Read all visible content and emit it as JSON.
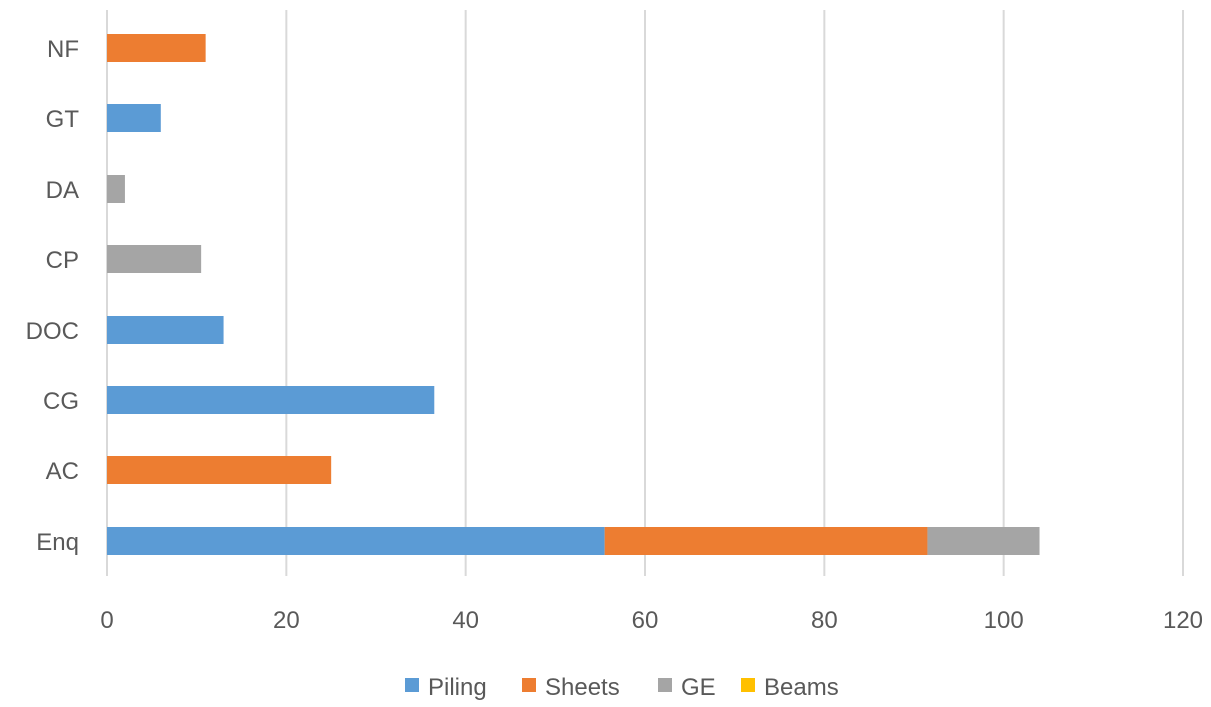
{
  "chart_data": {
    "type": "bar",
    "orientation": "horizontal",
    "stacked": true,
    "categories": [
      "Enq",
      "AC",
      "CG",
      "DOC",
      "CP",
      "DA",
      "GT",
      "NF"
    ],
    "series": [
      {
        "name": "Piling",
        "color": "#5b9bd5",
        "values": [
          55.5,
          0,
          36.5,
          13,
          0,
          0,
          6,
          0
        ]
      },
      {
        "name": "Sheets",
        "color": "#ed7d31",
        "values": [
          36,
          25,
          0,
          0,
          0,
          0,
          0,
          11
        ]
      },
      {
        "name": "GE",
        "color": "#a5a5a5",
        "values": [
          12.5,
          0,
          0,
          0,
          10.5,
          2,
          0,
          0
        ]
      },
      {
        "name": "Beams",
        "color": "#ffc000",
        "values": [
          0,
          0,
          0,
          0,
          0,
          0,
          0,
          0
        ]
      }
    ],
    "xlim": [
      0,
      120
    ],
    "x_ticks": [
      "0",
      "20",
      "40",
      "60",
      "80",
      "100",
      "120"
    ],
    "grid": "vertical",
    "legend_position": "bottom",
    "title": "",
    "xlabel": "",
    "ylabel": ""
  }
}
